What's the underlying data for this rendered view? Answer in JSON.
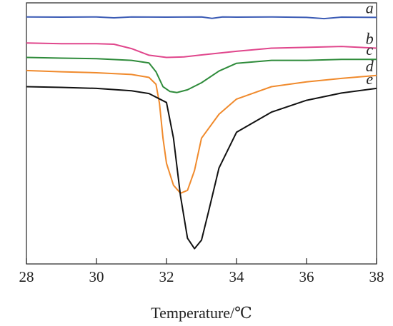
{
  "chart_data": {
    "type": "line",
    "title": "",
    "xlabel": "Temperature/℃",
    "ylabel": "",
    "xlim": [
      28,
      38
    ],
    "ylim": [
      0,
      100
    ],
    "xticks": [
      "28",
      "30",
      "32",
      "34",
      "36",
      "38"
    ],
    "grid": false,
    "legend": "inline labels at right end of each curve",
    "colors": {
      "a": "#3b5bb5",
      "b": "#e0468c",
      "c": "#2e8b3a",
      "d": "#f08a2c",
      "e": "#111111",
      "axis": "#333333"
    },
    "series": [
      {
        "name": "a",
        "x": [
          28.0,
          29.0,
          30.0,
          30.5,
          31.0,
          32.0,
          33.0,
          33.3,
          33.6,
          34.0,
          35.0,
          36.0,
          36.5,
          37.0,
          38.0
        ],
        "y": [
          96.0,
          95.9,
          96.0,
          95.6,
          96.0,
          95.9,
          96.0,
          95.4,
          96.0,
          95.9,
          96.0,
          95.8,
          95.3,
          95.9,
          95.8
        ]
      },
      {
        "name": "b",
        "x": [
          28.0,
          29.0,
          30.0,
          30.5,
          31.0,
          31.5,
          32.0,
          32.5,
          33.0,
          34.0,
          35.0,
          36.0,
          37.0,
          38.0
        ],
        "y": [
          85.3,
          85.0,
          85.0,
          84.8,
          83.0,
          80.3,
          79.4,
          79.6,
          80.4,
          81.9,
          83.2,
          83.5,
          83.9,
          83.2
        ]
      },
      {
        "name": "c",
        "x": [
          28.0,
          29.0,
          30.0,
          31.0,
          31.5,
          31.7,
          31.9,
          32.1,
          32.3,
          32.6,
          33.0,
          33.5,
          34.0,
          35.0,
          36.0,
          37.0,
          38.0
        ],
        "y": [
          79.4,
          79.1,
          78.9,
          78.2,
          77.1,
          73.5,
          67.4,
          65.4,
          65.0,
          66.1,
          69.0,
          73.8,
          77.0,
          78.2,
          78.2,
          78.6,
          78.6
        ]
      },
      {
        "name": "d",
        "x": [
          28.0,
          29.0,
          30.0,
          31.0,
          31.5,
          31.7,
          31.8,
          31.9,
          32.0,
          32.2,
          32.4,
          32.6,
          32.8,
          33.0,
          33.5,
          34.0,
          35.0,
          36.0,
          37.0,
          38.0
        ],
        "y": [
          74.0,
          73.5,
          73.1,
          72.4,
          71.2,
          68.4,
          60.5,
          46.3,
          36.0,
          27.0,
          23.7,
          24.9,
          33.0,
          46.3,
          56.1,
          62.3,
          67.4,
          69.4,
          70.8,
          72.0
        ]
      },
      {
        "name": "e",
        "x": [
          28.0,
          29.0,
          30.0,
          31.0,
          31.5,
          32.0,
          32.2,
          32.4,
          32.6,
          32.8,
          33.0,
          33.2,
          33.5,
          34.0,
          35.0,
          36.0,
          37.0,
          38.0
        ],
        "y": [
          67.4,
          67.1,
          66.7,
          65.7,
          64.6,
          60.9,
          46.3,
          22.6,
          5.3,
          1.0,
          4.5,
          16.1,
          34.1,
          48.7,
          57.0,
          61.8,
          64.8,
          66.7
        ]
      }
    ]
  }
}
